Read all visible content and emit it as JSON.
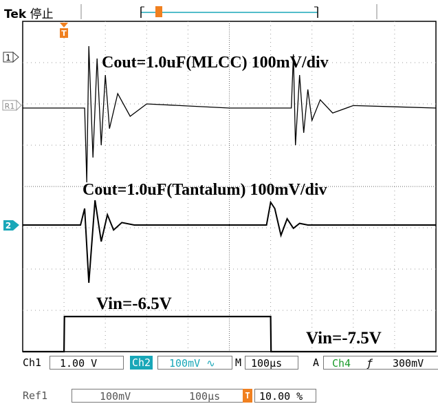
{
  "header": {
    "brand": "Tek",
    "state": "停止"
  },
  "annotations": {
    "ch1": "Cout=1.0uF(MLCC) 100mV/div",
    "ch2": "Cout=1.0uF(Tantalum) 100mV/div",
    "vin_high": "Vin=-6.5V",
    "vin_low": "Vin=-7.5V"
  },
  "markers": {
    "ch1": "1",
    "ref1": "R1",
    "ch2": "2",
    "trigger": "T"
  },
  "readout": {
    "ch1_label": "Ch1",
    "ch1_scale": "1.00 V",
    "ch2_label": "Ch2",
    "ch2_scale": "100mV",
    "ch2_coupling": "∿",
    "m_label": "M",
    "timebase": "100µs",
    "a_label": "A",
    "trig_source": "Ch4",
    "trig_slope": "ƒ",
    "trig_level": "300mV",
    "ref_label": "Ref1",
    "ref_scale": "100mV",
    "ref_time": "100µs",
    "trig_pos_icon": "T",
    "trig_pos": "10.00 %"
  },
  "colors": {
    "ch2_tag": "#19a7b8",
    "trigger": "#f08020",
    "waveform": "#000000"
  },
  "chart_data": {
    "type": "line",
    "x_divisions": 10,
    "y_divisions": 8,
    "x_unit": "µs",
    "x_per_div": 100,
    "grid": true,
    "series": [
      {
        "name": "Cout=1.0uF(MLCC)",
        "x": [
          0,
          150,
          155,
          160,
          170,
          180,
          190,
          200,
          210,
          230,
          260,
          300,
          400,
          500,
          650,
          655,
          660,
          670,
          680,
          690,
          700,
          720,
          750,
          800,
          900,
          1000
        ],
        "y": [
          0,
          0,
          -180,
          150,
          -120,
          120,
          -90,
          80,
          -50,
          35,
          -20,
          10,
          5,
          0,
          0,
          130,
          -90,
          80,
          -60,
          45,
          -30,
          20,
          -12,
          6,
          3,
          0
        ]
      },
      {
        "name": "Cout=1.0uF(Tantalum)",
        "x": [
          0,
          140,
          150,
          160,
          175,
          190,
          205,
          220,
          240,
          270,
          300,
          400,
          500,
          590,
          600,
          610,
          625,
          640,
          655,
          670,
          690,
          720,
          800,
          900,
          1000
        ],
        "y": [
          0,
          0,
          40,
          -140,
          60,
          -40,
          25,
          -12,
          6,
          0,
          0,
          0,
          0,
          0,
          55,
          40,
          -25,
          15,
          -8,
          4,
          0,
          0,
          0,
          0,
          0
        ]
      },
      {
        "name": "Vin",
        "x": [
          0,
          100,
          101,
          600,
          601,
          1000
        ],
        "y": [
          -7.5,
          -7.5,
          -6.5,
          -6.5,
          -7.5,
          -7.5
        ]
      }
    ]
  }
}
